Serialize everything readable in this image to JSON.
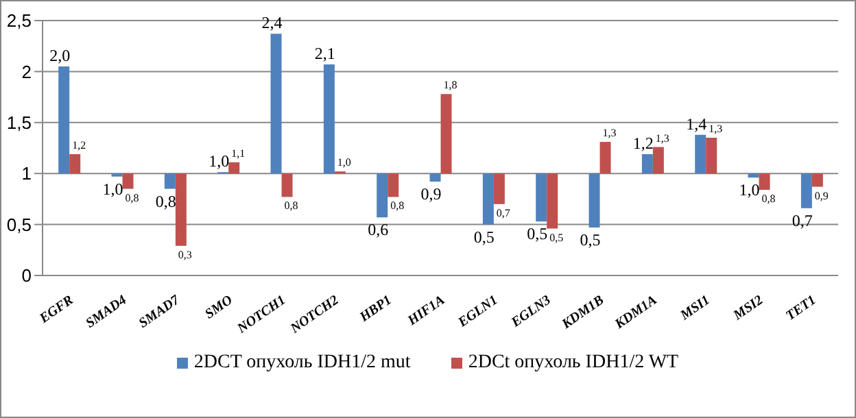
{
  "chart_data": {
    "type": "bar",
    "categories": [
      "EGFR",
      "SMAD4",
      "SMAD7",
      "SMO",
      "NOTCH1",
      "NOTCH2",
      "HBP1",
      "HIF1A",
      "EGLN1",
      "EGLN3",
      "KDM1B",
      "KDM1A",
      "MSI1",
      "MSI2",
      "TET1"
    ],
    "series": [
      {
        "name": "2DCT опухоль IDH1/2 mut",
        "color": "#4f81bd",
        "base": [
          1,
          1,
          1,
          1,
          1,
          1,
          1,
          1,
          1,
          1,
          1,
          1,
          1,
          1,
          1
        ],
        "values": [
          1.05,
          -0.03,
          -0.15,
          0,
          1.37,
          1.07,
          -0.43,
          -0.08,
          -0.5,
          -0.47,
          -0.53,
          0.19,
          0.38,
          -0.04,
          -0.34
        ],
        "value_labels": [
          "2,0",
          "1,0",
          "0,8",
          "1,0",
          "2,4",
          "2,1",
          "0,6",
          "0,9",
          "0,5",
          "0,5",
          "0,5",
          "1,2",
          "1,4",
          "1,0",
          "0,7"
        ]
      },
      {
        "name": "2DCt опухоль IDH1/2 WT",
        "color": "#c0504d",
        "base": [
          1,
          1,
          1,
          1,
          1,
          1,
          1,
          1,
          1,
          1,
          1,
          1,
          1,
          1,
          1
        ],
        "values": [
          0.19,
          -0.15,
          -0.71,
          0.11,
          -0.23,
          0.02,
          -0.23,
          0.78,
          -0.3,
          -0.54,
          0.31,
          0.26,
          0.35,
          -0.16,
          -0.13
        ],
        "value_labels": [
          "1,2",
          "0,8",
          "0,3",
          "1,1",
          "0,8",
          "1,0",
          "0,8",
          "1,8",
          "0,7",
          "0,5",
          "1,3",
          "1,3",
          "1,3",
          "0,8",
          "0,9"
        ]
      }
    ],
    "ylim": [
      0,
      2.5
    ],
    "yticks": [
      0,
      {
        "value": 0.5,
        "label": "0,5"
      },
      1,
      {
        "value": 1.5,
        "label": "1,5"
      },
      2,
      {
        "value": 2.5,
        "label": "2,5"
      }
    ],
    "grid": "y",
    "legend": "bottom"
  }
}
